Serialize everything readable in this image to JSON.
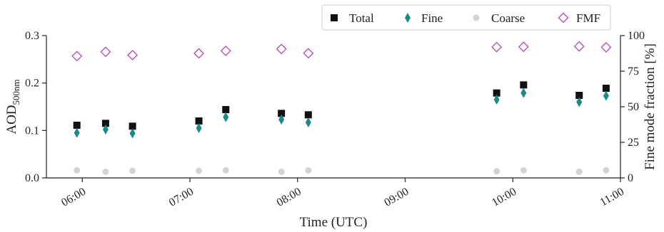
{
  "chart_data": {
    "type": "scatter",
    "xlabel": "Time (UTC)",
    "ylabel_left": "AOD",
    "ylabel_left_sub": "500nm",
    "ylabel_right": "Fine mode fraction [%]",
    "x_ticks": [
      "06:00",
      "07:00",
      "08:00",
      "09:00",
      "10:00",
      "11:00"
    ],
    "x_range": [
      "05:40",
      "11:00"
    ],
    "y_left_range": [
      0.0,
      0.3
    ],
    "y_left_ticks": [
      "0.0",
      "0.1",
      "0.2",
      "0.3"
    ],
    "y_right_range": [
      0,
      100
    ],
    "y_right_ticks": [
      "0",
      "25",
      "50",
      "75",
      "100"
    ],
    "grid": false,
    "legend_position": "top-right",
    "series": [
      {
        "name": "Total",
        "axis": "left",
        "marker": "square",
        "color": "#111111",
        "points": [
          {
            "x": "05:57",
            "y": 0.111
          },
          {
            "x": "06:13",
            "y": 0.115
          },
          {
            "x": "06:28",
            "y": 0.109
          },
          {
            "x": "07:05",
            "y": 0.12
          },
          {
            "x": "07:20",
            "y": 0.144
          },
          {
            "x": "07:51",
            "y": 0.136
          },
          {
            "x": "08:06",
            "y": 0.133
          },
          {
            "x": "09:51",
            "y": 0.179
          },
          {
            "x": "10:06",
            "y": 0.196
          },
          {
            "x": "10:37",
            "y": 0.174
          },
          {
            "x": "10:52",
            "y": 0.189
          }
        ]
      },
      {
        "name": "Fine",
        "axis": "left",
        "marker": "thin-diamond",
        "color": "#1a8a88",
        "points": [
          {
            "x": "05:57",
            "y": 0.095
          },
          {
            "x": "06:13",
            "y": 0.102
          },
          {
            "x": "06:28",
            "y": 0.094
          },
          {
            "x": "07:05",
            "y": 0.105
          },
          {
            "x": "07:20",
            "y": 0.128
          },
          {
            "x": "07:51",
            "y": 0.123
          },
          {
            "x": "08:06",
            "y": 0.117
          },
          {
            "x": "09:51",
            "y": 0.165
          },
          {
            "x": "10:06",
            "y": 0.179
          },
          {
            "x": "10:37",
            "y": 0.16
          },
          {
            "x": "10:52",
            "y": 0.173
          }
        ]
      },
      {
        "name": "Coarse",
        "axis": "left",
        "marker": "circle",
        "color": "#d3d3d3",
        "points": [
          {
            "x": "05:57",
            "y": 0.016
          },
          {
            "x": "06:13",
            "y": 0.013
          },
          {
            "x": "06:28",
            "y": 0.015
          },
          {
            "x": "07:05",
            "y": 0.015
          },
          {
            "x": "07:20",
            "y": 0.016
          },
          {
            "x": "07:51",
            "y": 0.013
          },
          {
            "x": "08:06",
            "y": 0.016
          },
          {
            "x": "09:51",
            "y": 0.014
          },
          {
            "x": "10:06",
            "y": 0.016
          },
          {
            "x": "10:37",
            "y": 0.013
          },
          {
            "x": "10:52",
            "y": 0.016
          }
        ]
      },
      {
        "name": "FMF",
        "axis": "right",
        "marker": "open-diamond",
        "color": "#b04ab8",
        "points": [
          {
            "x": "05:57",
            "y": 85.6
          },
          {
            "x": "06:13",
            "y": 88.6
          },
          {
            "x": "06:28",
            "y": 86.3
          },
          {
            "x": "07:05",
            "y": 87.5
          },
          {
            "x": "07:20",
            "y": 89.3
          },
          {
            "x": "07:51",
            "y": 90.6
          },
          {
            "x": "08:06",
            "y": 87.6
          },
          {
            "x": "09:51",
            "y": 91.9
          },
          {
            "x": "10:06",
            "y": 92.1
          },
          {
            "x": "10:37",
            "y": 92.4
          },
          {
            "x": "10:52",
            "y": 91.8
          }
        ]
      }
    ]
  }
}
